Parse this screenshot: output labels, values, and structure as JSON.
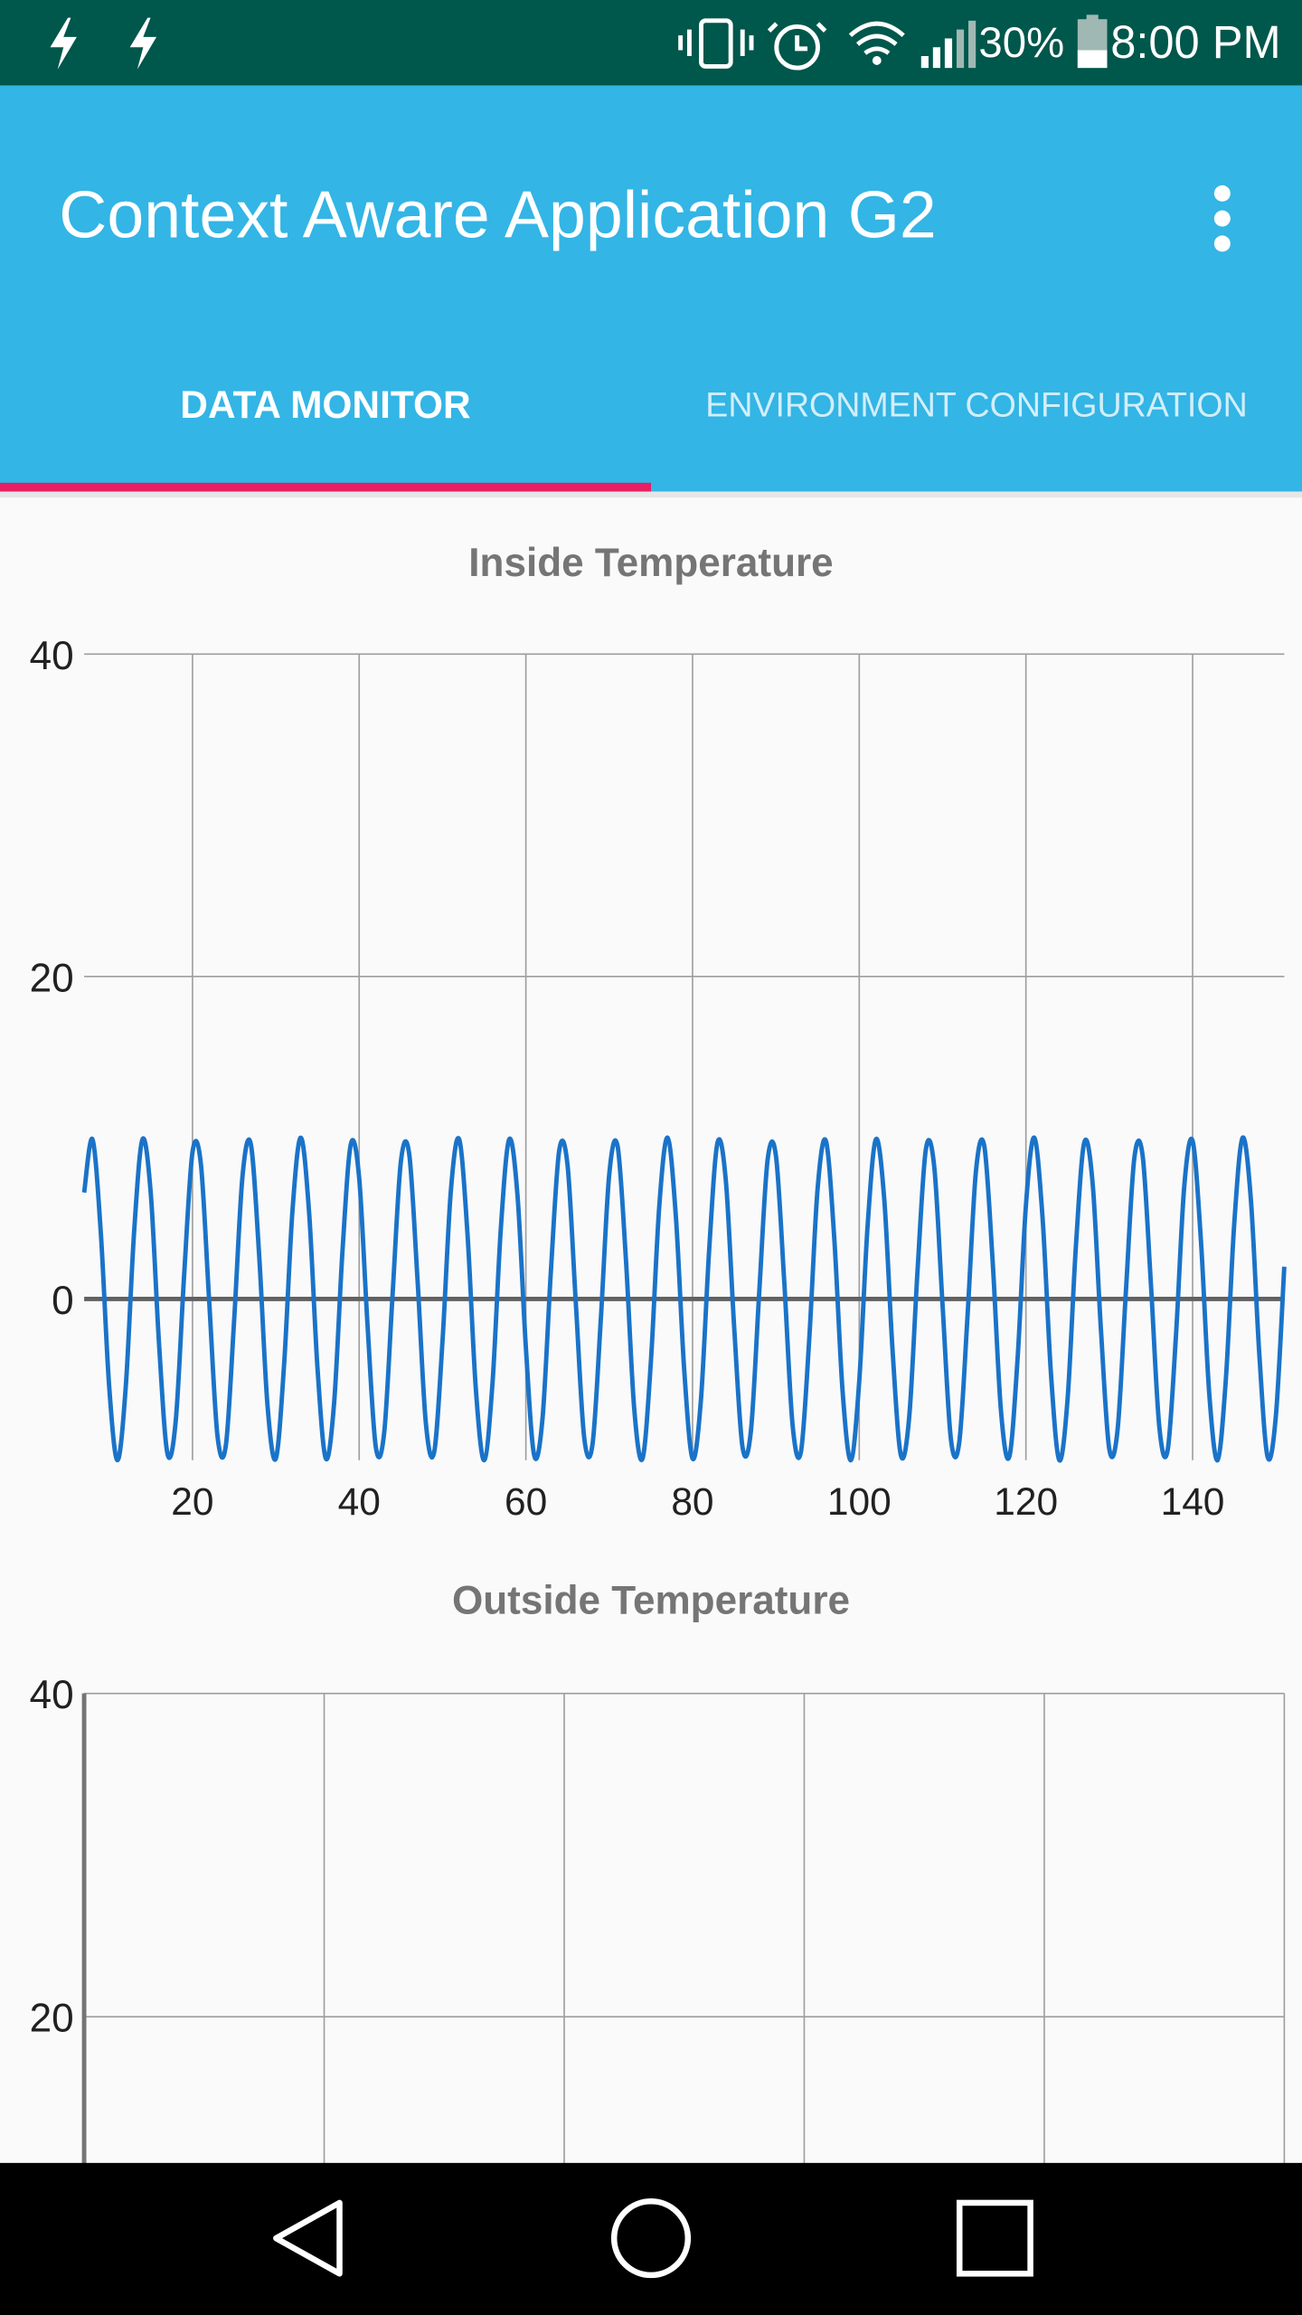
{
  "status_bar": {
    "battery": "30%",
    "time": "8:00 PM"
  },
  "app_bar": {
    "title": "Context Aware Application G2"
  },
  "tabs": [
    {
      "label": "DATA MONITOR",
      "selected": true
    },
    {
      "label": "ENVIRONMENT CONFIGURATION",
      "selected": false
    }
  ],
  "chart_data": [
    {
      "type": "line",
      "title": "Inside Temperature",
      "color": "#1a73c8",
      "grid": true,
      "xlim": [
        7,
        151
      ],
      "xticks": [
        20,
        40,
        60,
        80,
        100,
        120,
        140
      ],
      "ylim": [
        -10,
        40
      ],
      "yticks": [
        0,
        20,
        40
      ],
      "x": [
        7,
        8,
        9,
        10,
        11,
        12,
        13,
        14,
        15,
        16,
        17,
        18,
        19,
        20,
        21,
        22,
        23,
        24,
        25,
        26,
        27,
        28,
        29,
        30,
        31,
        32,
        33,
        34,
        35,
        36,
        37,
        38,
        39,
        40,
        41,
        42,
        43,
        44,
        45,
        46,
        47,
        48,
        49,
        50,
        51,
        52,
        53,
        54,
        55,
        56,
        57,
        58,
        59,
        60,
        61,
        62,
        63,
        64,
        65,
        66,
        67,
        68,
        69,
        70,
        71,
        72,
        73,
        74,
        75,
        76,
        77,
        78,
        79,
        80,
        81,
        82,
        83,
        84,
        85,
        86,
        87,
        88,
        89,
        90,
        91,
        92,
        93,
        94,
        95,
        96,
        97,
        98,
        99,
        100,
        101,
        102,
        103,
        104,
        105,
        106,
        107,
        108,
        109,
        110,
        111,
        112,
        113,
        114,
        115,
        116,
        117,
        118,
        119,
        120,
        121,
        122,
        123,
        124,
        125,
        126,
        127,
        128,
        129,
        130,
        131,
        132,
        133,
        134,
        135,
        136,
        137,
        138,
        139,
        140,
        141,
        142,
        143,
        144,
        145,
        146,
        147,
        148,
        149,
        150,
        151
      ],
      "values": [
        6.6,
        9.9,
        4.1,
        -5.4,
        -10.0,
        -5.4,
        4.2,
        9.9,
        6.5,
        -2.9,
        -9.6,
        -7.5,
        1.5,
        9.1,
        8.4,
        -0.1,
        -8.5,
        -9.1,
        -1.3,
        7.6,
        9.6,
        2.7,
        -6.6,
        -9.9,
        -4.0,
        5.5,
        10.0,
        5.3,
        -4.3,
        -9.9,
        -6.4,
        3.0,
        9.6,
        7.5,
        -1.6,
        -9.2,
        -8.3,
        0.2,
        8.5,
        9.0,
        1.2,
        -7.7,
        -9.5,
        -2.6,
        6.7,
        9.9,
        4.0,
        -5.6,
        -10.0,
        -5.2,
        4.4,
        9.9,
        6.4,
        -3.0,
        -9.7,
        -7.4,
        1.7,
        9.2,
        8.3,
        -0.3,
        -8.6,
        -9.0,
        -1.2,
        7.7,
        9.5,
        2.5,
        -6.8,
        -9.9,
        -3.9,
        5.7,
        10.0,
        5.1,
        -4.4,
        -9.9,
        -6.3,
        3.1,
        9.7,
        7.3,
        -1.8,
        -9.2,
        -8.2,
        0.4,
        8.6,
        8.9,
        1.1,
        -7.8,
        -9.5,
        -2.5,
        6.8,
        9.8,
        3.8,
        -5.7,
        -10.0,
        -5.1,
        4.5,
        9.9,
        6.2,
        -3.2,
        -9.7,
        -7.3,
        1.8,
        9.3,
        8.2,
        -0.4,
        -8.7,
        -8.9,
        -1.0,
        7.9,
        9.5,
        2.4,
        -6.9,
        -9.8,
        -3.7,
        5.8,
        10.0,
        5.0,
        -4.6,
        -10.0,
        -6.2,
        3.3,
        9.7,
        7.2,
        -1.9,
        -9.3,
        -8.1,
        0.5,
        8.7,
        8.9,
        0.9,
        -7.9,
        -9.4,
        -2.3,
        7.0,
        9.8,
        3.6,
        -5.9,
        -10.0,
        -4.9,
        4.7,
        10.0,
        6.1,
        -3.4,
        -9.8,
        -7.2,
        2.0
      ]
    },
    {
      "type": "line",
      "title": "Outside Temperature",
      "grid": true,
      "ylim": [
        0,
        40
      ],
      "yticks": [
        20,
        40
      ]
    }
  ]
}
